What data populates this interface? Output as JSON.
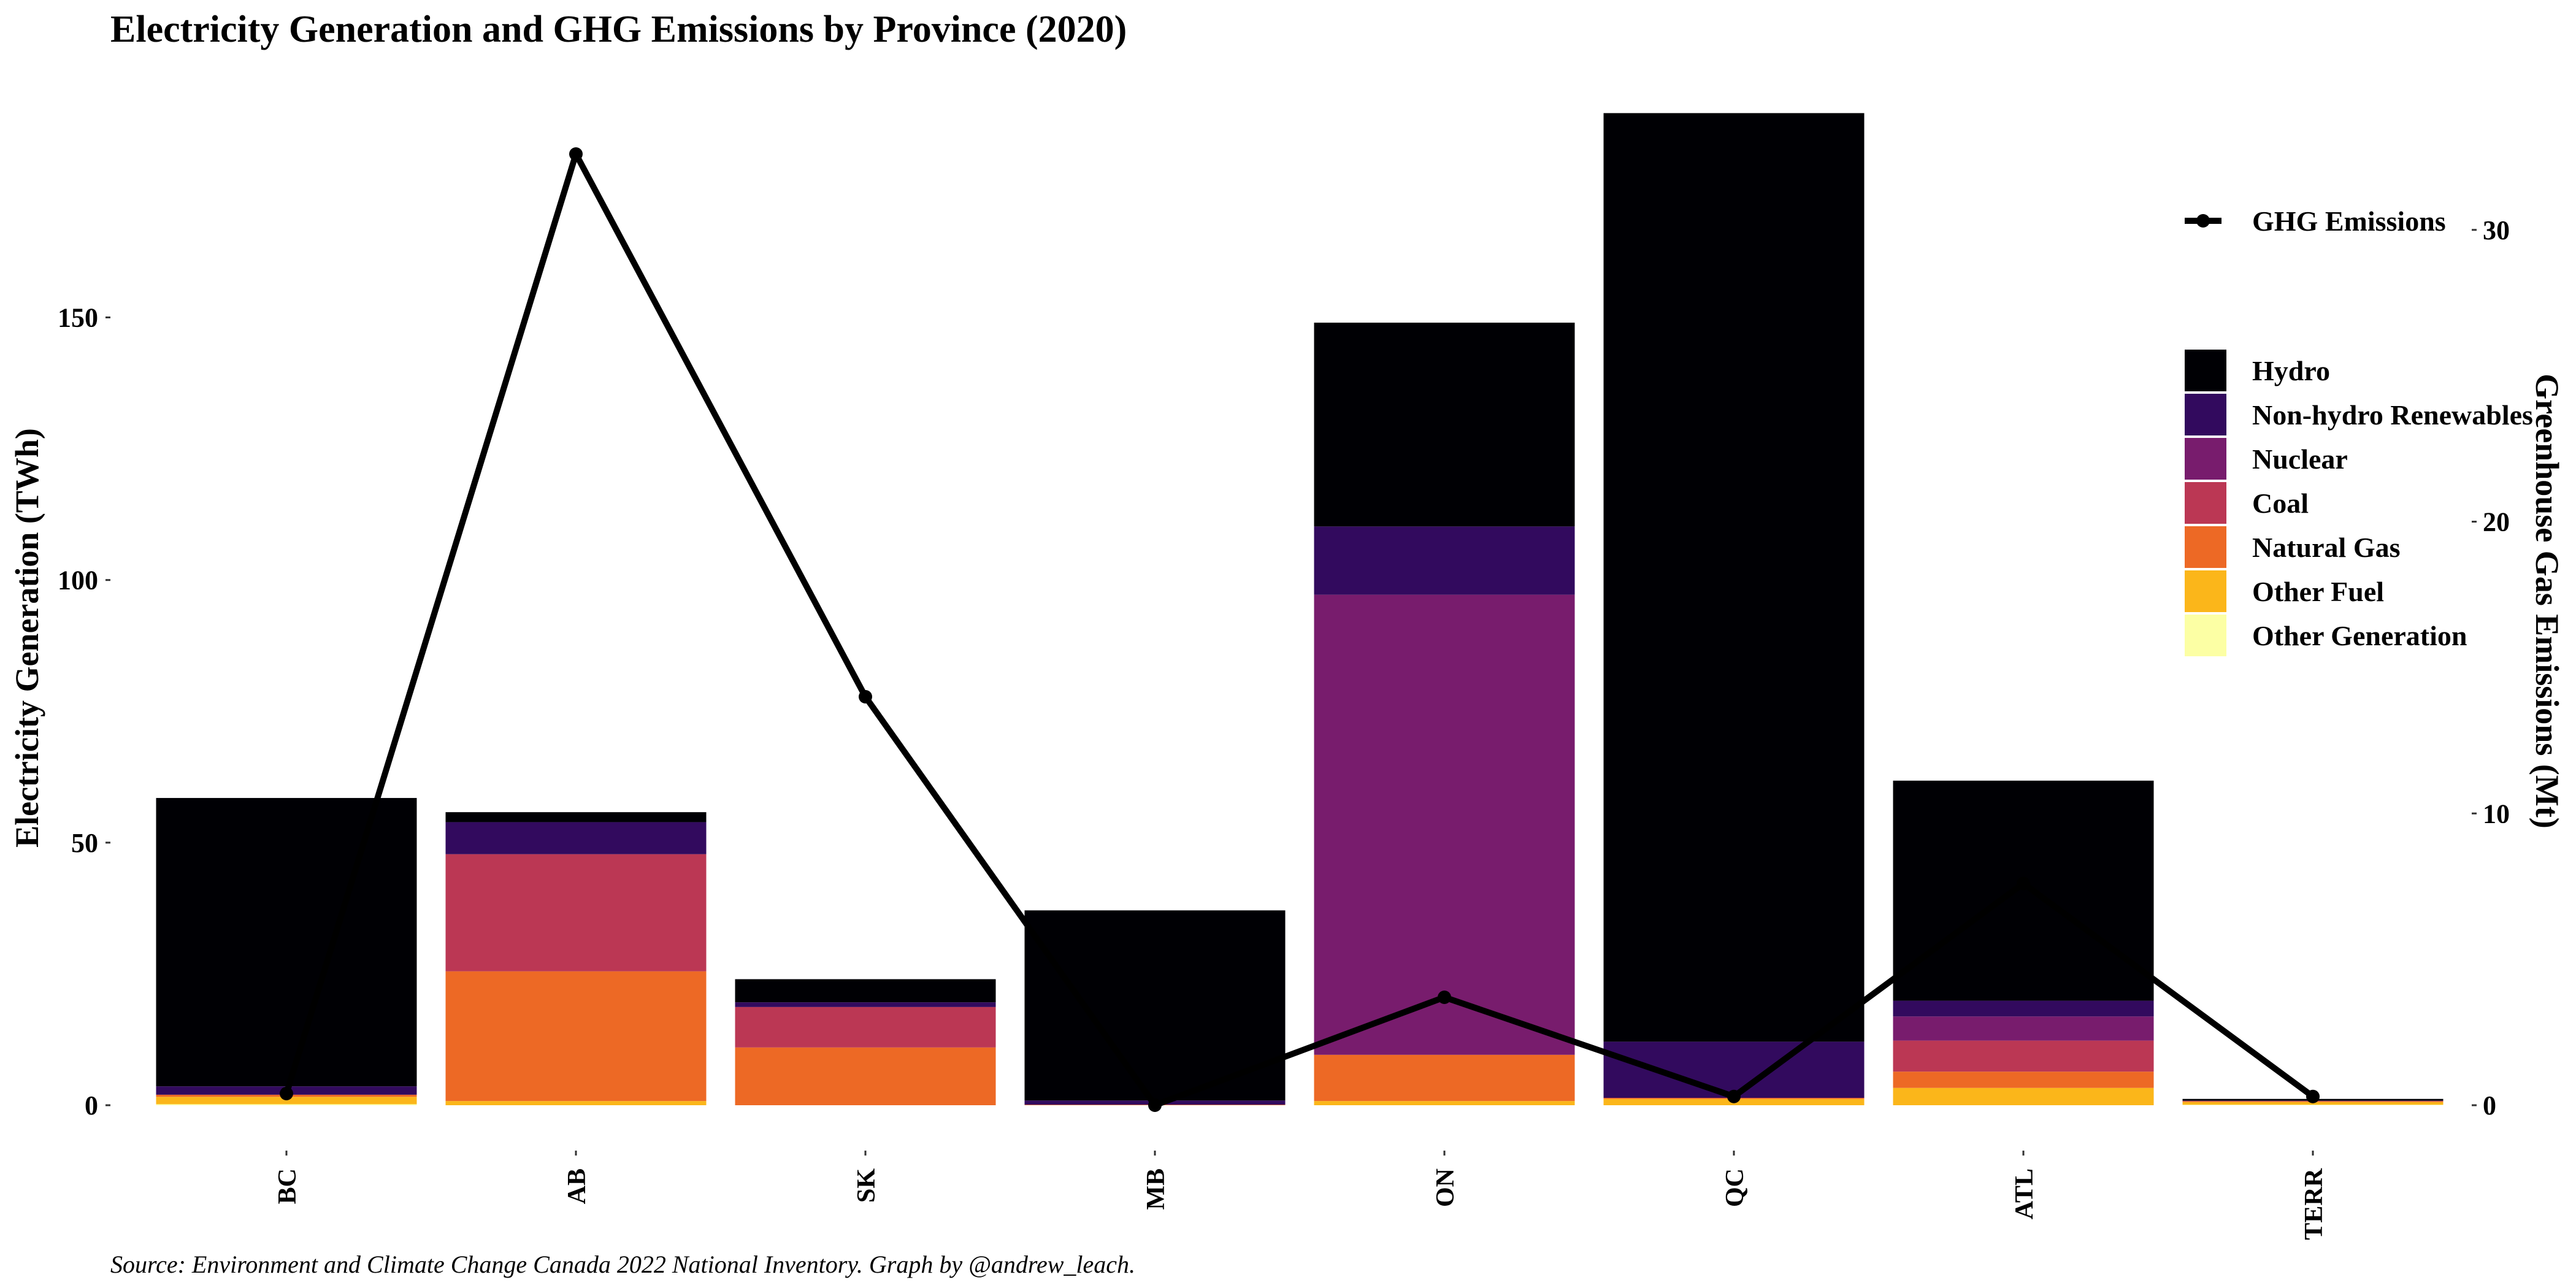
{
  "chart_data": {
    "type": "bar",
    "title": "Electricity Generation and GHG Emissions by Province (2020)",
    "ylabel": "Electricity Generation (TWh)",
    "y2label": "Greenhouse Gas Emissions (Mt)",
    "caption": "Source: Environment and Climate Change Canada 2022 National Inventory. Graph by @andrew_leach.",
    "categories": [
      "BC",
      "AB",
      "SK",
      "MB",
      "ON",
      "QC",
      "ATL",
      "TERR"
    ],
    "ylim": [
      0,
      190
    ],
    "y_ticks": [
      0,
      50,
      100,
      150
    ],
    "y_tick_labels": [
      "0",
      "50",
      "100",
      "150"
    ],
    "y2lim": [
      0,
      34.2
    ],
    "y2_ticks": [
      0,
      10,
      20,
      30
    ],
    "y2_tick_labels": [
      "0",
      "10",
      "20",
      "30"
    ],
    "stacked": true,
    "series": [
      {
        "name": "Other Generation",
        "color": "#FCFFA4",
        "values": [
          0.2,
          0,
          0,
          0,
          0,
          0,
          0,
          0.1
        ]
      },
      {
        "name": "Other Fuel",
        "color": "#FBB61A",
        "values": [
          1.4,
          0.8,
          0,
          0,
          0.8,
          1.2,
          3.3,
          0.5
        ]
      },
      {
        "name": "Natural Gas",
        "color": "#ED6925",
        "values": [
          0.4,
          24.7,
          11.0,
          0.1,
          8.8,
          0.2,
          3.1,
          0.2
        ]
      },
      {
        "name": "Coal",
        "color": "#BB3754",
        "values": [
          0,
          22.3,
          7.7,
          0,
          0,
          0,
          5.9,
          0
        ]
      },
      {
        "name": "Nuclear",
        "color": "#781C6D",
        "values": [
          0,
          0,
          0,
          0,
          87.6,
          0,
          4.6,
          0
        ]
      },
      {
        "name": "Non-hydro Renewables",
        "color": "#320A5E",
        "values": [
          1.6,
          6.1,
          0.9,
          0.8,
          13.0,
          10.7,
          3.0,
          0.1
        ]
      },
      {
        "name": "Hydro",
        "color": "#000004",
        "values": [
          54.9,
          1.9,
          4.4,
          36.2,
          38.8,
          176.8,
          41.9,
          0.3
        ]
      }
    ],
    "legend": {
      "position": "right",
      "labels": [
        "Hydro",
        "Non-hydro Renewables",
        "Nuclear",
        "Coal",
        "Natural Gas",
        "Other Fuel",
        "Other Generation"
      ]
    },
    "line_series": {
      "name": "GHG Emissions",
      "axis": "right",
      "color": "#000000",
      "values": [
        0.4,
        32.6,
        14.0,
        0.0,
        3.7,
        0.3,
        7.6,
        0.3
      ]
    }
  }
}
